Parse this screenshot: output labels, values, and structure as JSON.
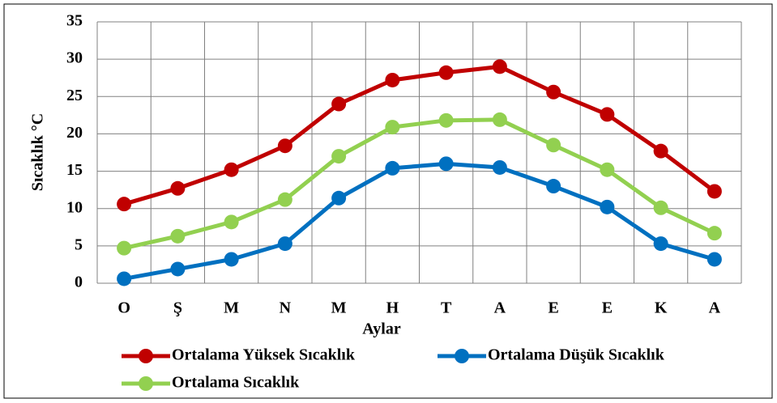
{
  "chart_data": {
    "type": "line",
    "ylabel": "Sıcaklık °C",
    "xlabel": "Aylar",
    "categories": [
      "O",
      "Ş",
      "M",
      "N",
      "M",
      "H",
      "T",
      "A",
      "E",
      "E",
      "K",
      "A"
    ],
    "series": [
      {
        "name": "Ortalama Yüksek Sıcaklık",
        "color": "#c00000",
        "values": [
          10.6,
          12.7,
          15.2,
          18.4,
          24.0,
          27.2,
          28.2,
          29.0,
          25.6,
          22.6,
          17.7,
          12.3
        ]
      },
      {
        "name": "Ortalama Düşük Sıcaklık",
        "color": "#0070c0",
        "values": [
          0.6,
          1.9,
          3.2,
          5.3,
          11.4,
          15.4,
          16.0,
          15.5,
          13.0,
          10.2,
          5.3,
          3.2
        ]
      },
      {
        "name": "Ortalama Sıcaklık",
        "color": "#92d050",
        "values": [
          4.7,
          6.3,
          8.2,
          11.2,
          17.0,
          20.9,
          21.8,
          21.9,
          18.5,
          15.2,
          10.1,
          6.7
        ]
      }
    ],
    "ylim": [
      0,
      35
    ],
    "yticks": [
      0,
      5,
      10,
      15,
      20,
      25,
      30,
      35
    ],
    "grid": true
  }
}
